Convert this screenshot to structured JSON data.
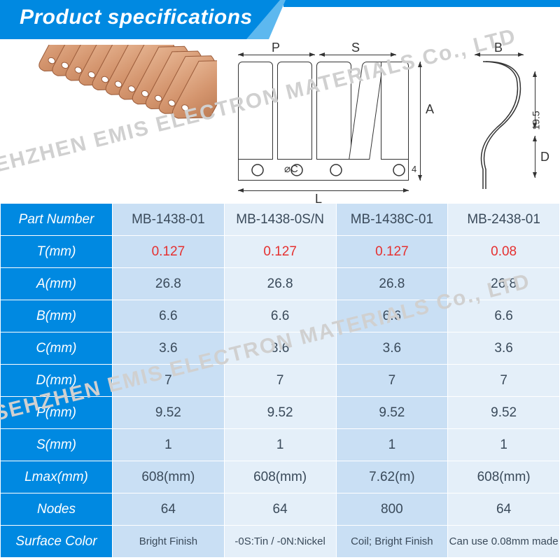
{
  "header": {
    "title": "Product specifications"
  },
  "watermark": "SEHZHEN EMIS ELECTRON MATERIALS Co., LTD",
  "diagram": {
    "labels": {
      "P": "P",
      "S": "S",
      "B": "B",
      "A": "A",
      "C": "⌀C",
      "D": "D",
      "L": "L",
      "h": "19.5",
      "gap": "4"
    }
  },
  "table": {
    "rows": [
      {
        "label": "Part Number",
        "vals": [
          "MB-1438-01",
          "MB-1438-0S/N",
          "MB-1438C-01",
          "MB-2438-01"
        ],
        "red": false
      },
      {
        "label": "T(mm)",
        "vals": [
          "0.127",
          "0.127",
          "0.127",
          "0.08"
        ],
        "red": true
      },
      {
        "label": "A(mm)",
        "vals": [
          "26.8",
          "26.8",
          "26.8",
          "26.8"
        ],
        "red": false
      },
      {
        "label": "B(mm)",
        "vals": [
          "6.6",
          "6.6",
          "6.6",
          "6.6"
        ],
        "red": false
      },
      {
        "label": "C(mm)",
        "vals": [
          "3.6",
          "3.6",
          "3.6",
          "3.6"
        ],
        "red": false
      },
      {
        "label": "D(mm)",
        "vals": [
          "7",
          "7",
          "7",
          "7"
        ],
        "red": false
      },
      {
        "label": "P(mm)",
        "vals": [
          "9.52",
          "9.52",
          "9.52",
          "9.52"
        ],
        "red": false
      },
      {
        "label": "S(mm)",
        "vals": [
          "1",
          "1",
          "1",
          "1"
        ],
        "red": false
      },
      {
        "label": "Lmax(mm)",
        "vals": [
          "608(mm)",
          "608(mm)",
          "7.62(m)",
          "608(mm)"
        ],
        "red": false
      },
      {
        "label": "Nodes",
        "vals": [
          "64",
          "64",
          "800",
          "64"
        ],
        "red": false
      },
      {
        "label": "Surface Color",
        "vals": [
          "Bright Finish",
          "-0S:Tin / -0N:Nickel",
          "Coil; Bright Finish",
          "Can use 0.08mm made"
        ],
        "red": false,
        "small": true
      }
    ]
  },
  "style": {
    "header_blue": "#0089e1",
    "header_light": "#5db8ef",
    "cell_a": "#c9dff4",
    "cell_b": "#e4eff9",
    "red": "#e53030",
    "text": "#3a4a5a"
  }
}
